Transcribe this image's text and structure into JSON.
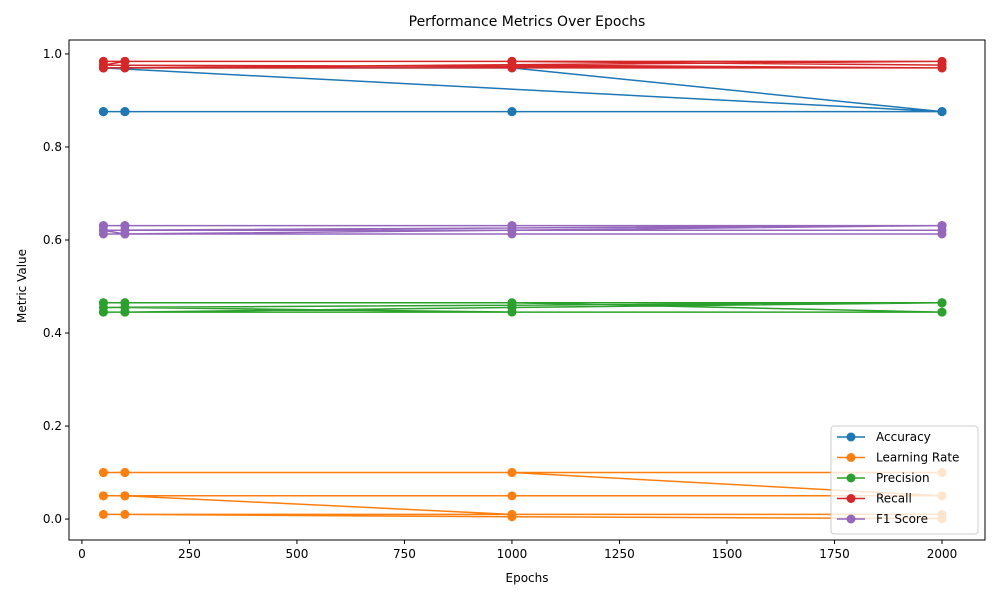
{
  "chart_data": {
    "type": "line",
    "title": "Performance Metrics Over Epochs",
    "xlabel": "Epochs",
    "ylabel": "Metric Value",
    "xlim": [
      -30,
      2100
    ],
    "ylim": [
      -0.045,
      1.03
    ],
    "xticks": [
      0,
      250,
      500,
      750,
      1000,
      1250,
      1500,
      1750,
      2000
    ],
    "xtick_labels": [
      "0",
      "250",
      "500",
      "750",
      "1000",
      "1250",
      "1500",
      "1750",
      "2000"
    ],
    "yticks": [
      0.0,
      0.2,
      0.4,
      0.6,
      0.8,
      1.0
    ],
    "ytick_labels": [
      "0.0",
      "0.2",
      "0.4",
      "0.6",
      "0.8",
      "1.0"
    ],
    "grid": false,
    "legend_position": "lower-right",
    "x": [
      50,
      100,
      1000,
      2000,
      50,
      100,
      1000,
      2000,
      50,
      100,
      1000,
      2000,
      50,
      100,
      1000,
      2000,
      50,
      100,
      1000,
      2000
    ],
    "series": [
      {
        "name": "Accuracy",
        "color": "#1f77b4",
        "values": [
          0.876,
          0.876,
          0.876,
          0.876,
          0.876,
          0.876,
          0.876,
          0.876,
          0.876,
          0.876,
          0.876,
          0.876,
          0.876,
          0.876,
          0.876,
          0.876,
          0.97,
          0.97,
          0.97,
          0.876
        ]
      },
      {
        "name": "Learning Rate",
        "color": "#ff7f0e",
        "values": [
          0.1,
          0.1,
          0.1,
          0.1,
          0.1,
          0.1,
          0.1,
          0.05,
          0.05,
          0.05,
          0.05,
          0.05,
          0.05,
          0.05,
          0.01,
          0.01,
          0.01,
          0.01,
          0.005,
          0.001
        ]
      },
      {
        "name": "Precision",
        "color": "#2ca02c",
        "values": [
          0.465,
          0.465,
          0.465,
          0.465,
          0.465,
          0.465,
          0.465,
          0.445,
          0.445,
          0.445,
          0.455,
          0.465,
          0.455,
          0.455,
          0.445,
          0.445,
          0.445,
          0.445,
          0.455,
          0.465
        ]
      },
      {
        "name": "Recall",
        "color": "#d62728",
        "values": [
          0.984,
          0.984,
          0.984,
          0.984,
          0.984,
          0.984,
          0.984,
          0.984,
          0.97,
          0.97,
          0.97,
          0.97,
          0.97,
          0.97,
          0.976,
          0.97,
          0.976,
          0.984,
          0.984,
          0.976
        ]
      },
      {
        "name": "F1 Score",
        "color": "#9467bd",
        "values": [
          0.631,
          0.631,
          0.631,
          0.631,
          0.631,
          0.631,
          0.631,
          0.631,
          0.621,
          0.621,
          0.621,
          0.621,
          0.621,
          0.613,
          0.613,
          0.613,
          0.613,
          0.613,
          0.621,
          0.631
        ]
      }
    ]
  }
}
